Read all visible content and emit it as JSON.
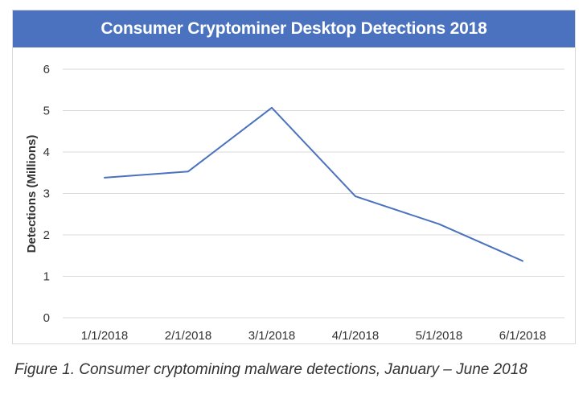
{
  "chart_data": {
    "type": "line",
    "title": "Consumer Cryptominer Desktop Detections 2018",
    "xlabel": "",
    "ylabel": "Detections (Millions)",
    "categories": [
      "1/1/2018",
      "2/1/2018",
      "3/1/2018",
      "4/1/2018",
      "5/1/2018",
      "6/1/2018"
    ],
    "series": [
      {
        "name": "Detections",
        "values": [
          3.38,
          3.53,
          5.07,
          2.93,
          2.26,
          1.37
        ]
      }
    ],
    "ylim": [
      0,
      6
    ],
    "yticks": [
      "0",
      "1",
      "2",
      "3",
      "4",
      "5",
      "6"
    ],
    "grid": true,
    "legend": "none",
    "colors": {
      "line": "#4a72bf",
      "title_bar": "#4a72bf",
      "grid": "#d9d9d9"
    }
  },
  "caption": "Figure 1. Consumer cryptomining malware detections, January – June 2018"
}
